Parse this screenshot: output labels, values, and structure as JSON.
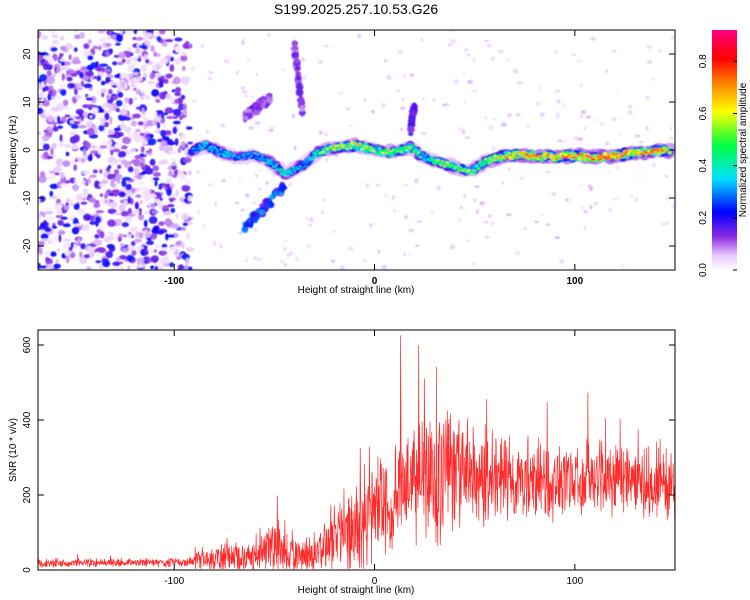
{
  "title": "S199.2025.257.10.53.G26",
  "chart_data": [
    {
      "type": "heatmap",
      "xlabel": "Height of straight line (km)",
      "ylabel": "Frequency (Hz)",
      "xlim": [
        -168,
        150
      ],
      "ylim": [
        -25,
        25
      ],
      "xticks": [
        -100,
        0,
        100
      ],
      "yticks": [
        -20,
        -10,
        0,
        10,
        20
      ],
      "noise_region_x": [
        -168,
        -92
      ],
      "ridge": {
        "x": [
          -92,
          -85,
          -75,
          -68,
          -60,
          -52,
          -45,
          -40,
          -35,
          -28,
          -20,
          -10,
          0,
          8,
          18,
          25,
          32,
          40,
          48,
          55,
          62,
          70,
          80,
          90,
          100,
          110,
          120,
          130,
          140,
          148
        ],
        "y": [
          -0.5,
          1,
          -0.8,
          -1.5,
          -1,
          -2.5,
          -5,
          -4,
          -3,
          -0.5,
          0.5,
          1,
          0,
          -0.5,
          0.5,
          -1.5,
          -2.5,
          -3.5,
          -4.5,
          -2.5,
          -1.5,
          -1,
          -1.2,
          -1.5,
          -1.2,
          -1.5,
          -1.2,
          -0.5,
          -0.3,
          0
        ],
        "amp": [
          0.3,
          0.45,
          0.4,
          0.35,
          0.35,
          0.4,
          0.45,
          0.4,
          0.35,
          0.5,
          0.65,
          0.7,
          0.55,
          0.6,
          0.6,
          0.45,
          0.55,
          0.6,
          0.55,
          0.55,
          0.7,
          0.8,
          0.85,
          0.8,
          0.85,
          0.85,
          0.9,
          0.75,
          0.9,
          0.7
        ]
      },
      "branches": [
        {
          "x": [
            -65,
            -55,
            -45
          ],
          "y": [
            -16,
            -12,
            -7
          ],
          "amp": 0.3
        },
        {
          "x": [
            -40,
            -38,
            -36
          ],
          "y": [
            22,
            15,
            8
          ],
          "amp": 0.15
        },
        {
          "x": [
            -65,
            -58,
            -52
          ],
          "y": [
            7,
            9,
            11
          ],
          "amp": 0.15
        },
        {
          "x": [
            18,
            19,
            20
          ],
          "y": [
            4,
            7,
            9
          ],
          "amp": 0.2
        }
      ],
      "colorbar": {
        "label": "Normalized spectral amplitude",
        "ticks": [
          0.0,
          0.2,
          0.4,
          0.6,
          0.8
        ],
        "tick_labels": [
          "0.0",
          "0.2",
          "0.4",
          "0.6",
          "0.8"
        ],
        "range": [
          0,
          0.92
        ],
        "palette": [
          "#ffffff",
          "#e8c8ff",
          "#8a2be2",
          "#0000ff",
          "#00e0ff",
          "#00ff40",
          "#ffff00",
          "#ff8000",
          "#ff0000",
          "#ff0080"
        ]
      }
    },
    {
      "type": "line",
      "xlabel": "Height of straight line (km)",
      "ylabel": "SNR (10 * v/v)",
      "xlim": [
        -168,
        150
      ],
      "ylim": [
        0,
        640
      ],
      "xticks": [
        -100,
        0,
        100
      ],
      "yticks": [
        0,
        200,
        400,
        600
      ],
      "color": "#ff2a2a",
      "envelope": {
        "x": [
          -168,
          -95,
          -85,
          -75,
          -60,
          -45,
          -38,
          -30,
          -20,
          -10,
          0,
          10,
          20,
          30,
          40,
          50,
          60,
          80,
          100,
          120,
          150
        ],
        "base": [
          18,
          20,
          30,
          35,
          40,
          60,
          40,
          40,
          80,
          110,
          180,
          220,
          250,
          260,
          250,
          240,
          240,
          240,
          250,
          240,
          230
        ],
        "amp": [
          14,
          14,
          40,
          55,
          60,
          90,
          60,
          55,
          90,
          130,
          160,
          190,
          200,
          220,
          190,
          170,
          150,
          130,
          120,
          120,
          110
        ]
      },
      "samples": 1800
    }
  ]
}
